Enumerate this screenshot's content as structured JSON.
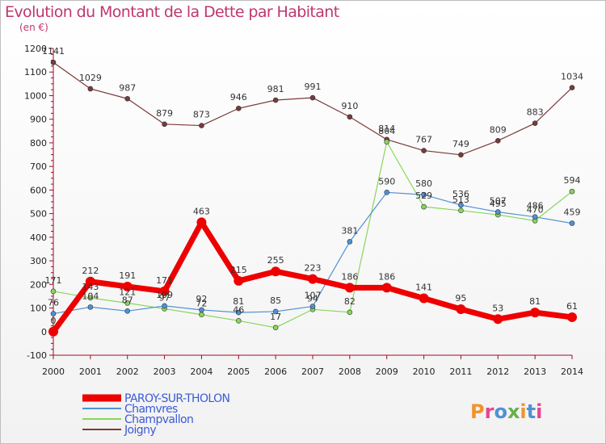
{
  "header": {
    "title": "Evolution du Montant de la Dette par Habitant",
    "subtitle": "(en €)"
  },
  "logo": {
    "text": "Proxiti"
  },
  "colors": {
    "background": "#ffffff",
    "title": "#c0366e",
    "axis": "#9d0b2b"
  },
  "chart_data": {
    "type": "line",
    "title": "Evolution du Montant de la Dette par Habitant",
    "subtitle": "(en €)",
    "x": [
      "2000",
      "2001",
      "2002",
      "2003",
      "2004",
      "2005",
      "2006",
      "2007",
      "2008",
      "2009",
      "2010",
      "2011",
      "2012",
      "2013",
      "2014"
    ],
    "ylim": [
      -100,
      1200
    ],
    "yticks": [
      -100,
      0,
      100,
      200,
      300,
      400,
      500,
      600,
      700,
      800,
      900,
      1000,
      1100,
      1200
    ],
    "grid": false,
    "legend_position": "bottom-left",
    "series": [
      {
        "name": "PAROY-SUR-THOLON",
        "color": "#ee0000",
        "values": [
          0,
          212,
          191,
          171,
          463,
          215,
          255,
          223,
          186,
          186,
          141,
          95,
          53,
          81,
          61
        ],
        "labels": [
          "0",
          "212",
          "191",
          "171",
          "463",
          "215",
          "255",
          "223",
          "186",
          "186",
          "141",
          "95",
          "53",
          "81",
          "61"
        ]
      },
      {
        "name": "Chamvres",
        "color": "#4f91d6",
        "values": [
          76,
          104,
          87,
          109,
          92,
          81,
          85,
          107,
          381,
          590,
          580,
          536,
          507,
          486,
          459
        ],
        "labels": [
          "76",
          "104",
          "87",
          "109",
          "92",
          "81",
          "85",
          "107",
          "381",
          "590",
          "580",
          "536",
          "507",
          "486",
          "459"
        ]
      },
      {
        "name": "Champvallon",
        "color": "#88d65a",
        "values": [
          171,
          143,
          121,
          97,
          72,
          46,
          17,
          94,
          82,
          804,
          529,
          513,
          495,
          470,
          594
        ],
        "labels": [
          "171",
          "143",
          "121",
          "97",
          "72",
          "46",
          "17",
          "94",
          "82",
          "804",
          "529",
          "513",
          "495",
          "470",
          "594"
        ]
      },
      {
        "name": "Joigny",
        "color": "#7a3a3a",
        "values": [
          1141,
          1029,
          987,
          879,
          873,
          946,
          981,
          991,
          910,
          814,
          767,
          749,
          809,
          883,
          1034
        ],
        "labels": [
          "1141",
          "1029",
          "987",
          "879",
          "873",
          "946",
          "981",
          "991",
          "910",
          "814",
          "767",
          "749",
          "809",
          "883",
          "1034"
        ]
      }
    ]
  }
}
